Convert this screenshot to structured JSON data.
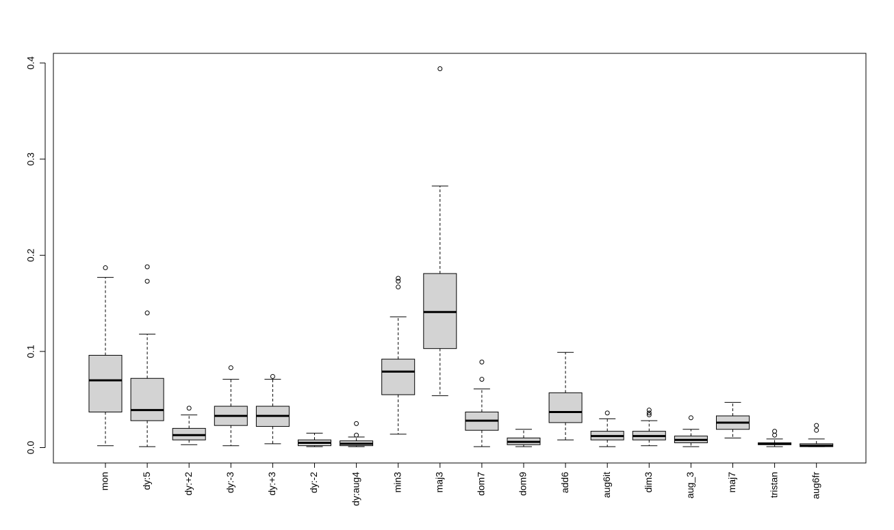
{
  "chart_data": {
    "type": "boxplot",
    "title": "",
    "xlabel": "",
    "ylabel": "",
    "ylim": [
      -0.016,
      0.41
    ],
    "yticks": [
      0.0,
      0.1,
      0.2,
      0.3,
      0.4
    ],
    "ytick_labels": [
      "0.0",
      "0.1",
      "0.2",
      "0.3",
      "0.4"
    ],
    "x_label_orientation": "vertical",
    "grid": false,
    "legend": "none",
    "colors": {
      "box_fill": "#d3d3d3",
      "stroke": "#000000",
      "background": "#ffffff"
    },
    "categories": [
      "mon",
      "dy:5",
      "dy:+2",
      "dy:-3",
      "dy:+3",
      "dy:-2",
      "dy:aug4",
      "min3",
      "maj3",
      "dom7",
      "dom9",
      "add6",
      "aug6it",
      "dim3",
      "aug_3",
      "maj7",
      "tristan",
      "aug6fr"
    ],
    "boxes": [
      {
        "min": 0.002,
        "q1": 0.037,
        "median": 0.07,
        "q3": 0.096,
        "max": 0.177,
        "outliers": [
          0.187
        ]
      },
      {
        "min": 0.001,
        "q1": 0.028,
        "median": 0.039,
        "q3": 0.072,
        "max": 0.118,
        "outliers": [
          0.14,
          0.173,
          0.188
        ]
      },
      {
        "min": 0.003,
        "q1": 0.008,
        "median": 0.013,
        "q3": 0.02,
        "max": 0.034,
        "outliers": [
          0.041
        ]
      },
      {
        "min": 0.002,
        "q1": 0.023,
        "median": 0.033,
        "q3": 0.043,
        "max": 0.071,
        "outliers": [
          0.083
        ]
      },
      {
        "min": 0.004,
        "q1": 0.022,
        "median": 0.033,
        "q3": 0.043,
        "max": 0.071,
        "outliers": [
          0.074
        ]
      },
      {
        "min": 0.001,
        "q1": 0.002,
        "median": 0.005,
        "q3": 0.008,
        "max": 0.015,
        "outliers": []
      },
      {
        "min": 0.001,
        "q1": 0.002,
        "median": 0.004,
        "q3": 0.007,
        "max": 0.011,
        "outliers": [
          0.013,
          0.025
        ]
      },
      {
        "min": 0.014,
        "q1": 0.055,
        "median": 0.079,
        "q3": 0.092,
        "max": 0.136,
        "outliers": [
          0.167,
          0.173,
          0.176
        ]
      },
      {
        "min": 0.054,
        "q1": 0.103,
        "median": 0.141,
        "q3": 0.181,
        "max": 0.272,
        "outliers": [
          0.394
        ]
      },
      {
        "min": 0.001,
        "q1": 0.018,
        "median": 0.028,
        "q3": 0.037,
        "max": 0.061,
        "outliers": [
          0.071,
          0.089
        ]
      },
      {
        "min": 0.001,
        "q1": 0.003,
        "median": 0.006,
        "q3": 0.01,
        "max": 0.019,
        "outliers": []
      },
      {
        "min": 0.008,
        "q1": 0.026,
        "median": 0.037,
        "q3": 0.057,
        "max": 0.099,
        "outliers": []
      },
      {
        "min": 0.001,
        "q1": 0.008,
        "median": 0.012,
        "q3": 0.017,
        "max": 0.03,
        "outliers": [
          0.036
        ]
      },
      {
        "min": 0.002,
        "q1": 0.008,
        "median": 0.012,
        "q3": 0.017,
        "max": 0.028,
        "outliers": [
          0.034,
          0.036,
          0.039
        ]
      },
      {
        "min": 0.001,
        "q1": 0.005,
        "median": 0.008,
        "q3": 0.012,
        "max": 0.019,
        "outliers": [
          0.031
        ]
      },
      {
        "min": 0.01,
        "q1": 0.019,
        "median": 0.026,
        "q3": 0.033,
        "max": 0.047,
        "outliers": []
      },
      {
        "min": 0.001,
        "q1": 0.003,
        "median": 0.004,
        "q3": 0.005,
        "max": 0.009,
        "outliers": [
          0.013,
          0.017
        ]
      },
      {
        "min": 0.001,
        "q1": 0.001,
        "median": 0.002,
        "q3": 0.004,
        "max": 0.009,
        "outliers": [
          0.018,
          0.023
        ]
      }
    ]
  }
}
